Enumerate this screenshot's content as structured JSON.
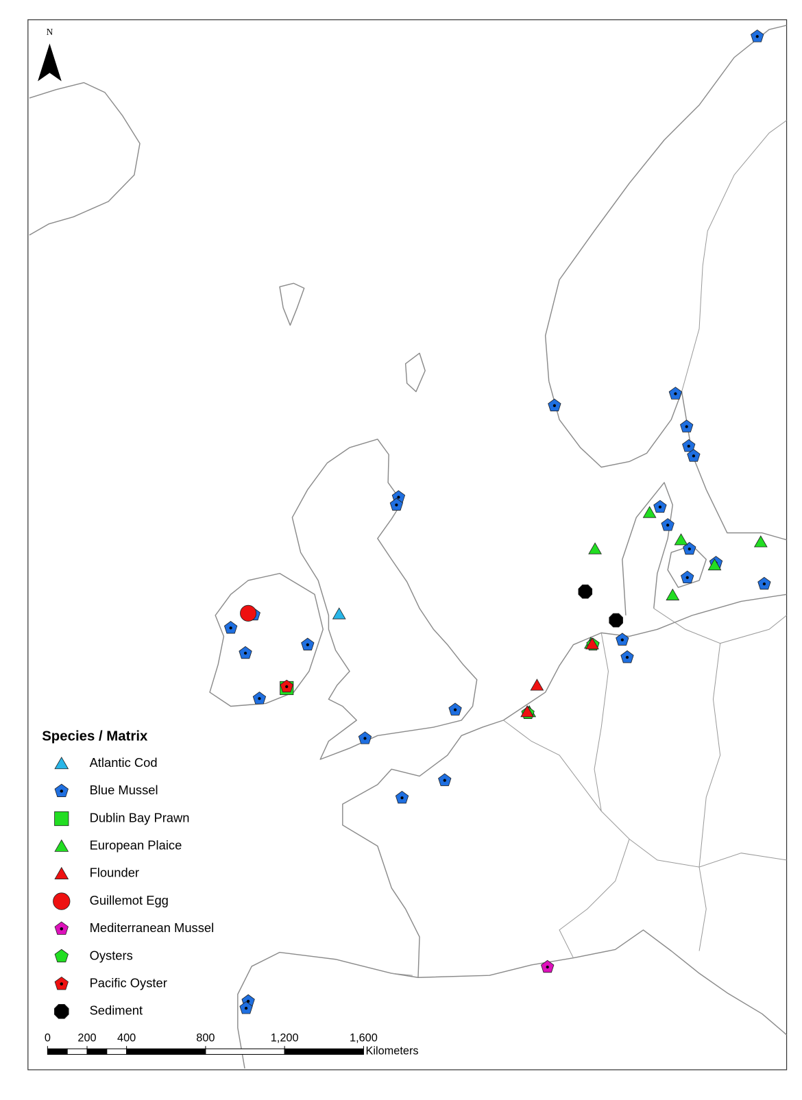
{
  "north_arrow": {
    "label": "N"
  },
  "legend": {
    "title": "Species / Matrix",
    "items": [
      {
        "label": "Atlantic Cod",
        "color": "#29b6e8"
      },
      {
        "label": "Blue Mussel",
        "color": "#1f6fe0"
      },
      {
        "label": "Dublin Bay Prawn",
        "color": "#22dd22"
      },
      {
        "label": "European Plaice",
        "color": "#22dd22"
      },
      {
        "label": "Flounder",
        "color": "#ee1111"
      },
      {
        "label": "Guillemot Egg",
        "color": "#ee1111"
      },
      {
        "label": "Mediterranean Mussel",
        "color": "#dd11bb"
      },
      {
        "label": "Oysters",
        "color": "#22dd22"
      },
      {
        "label": "Pacific Oyster",
        "color": "#ee1111"
      },
      {
        "label": "Sediment",
        "color": "#000000"
      }
    ]
  },
  "scale_bar": {
    "unit": "Kilometers",
    "range": [
      0,
      1600
    ],
    "ticks": [
      0,
      200,
      400,
      800,
      {
        "value": 1200,
        "label": "1,200"
      },
      {
        "value": 1600,
        "label": "1,600"
      }
    ]
  }
}
